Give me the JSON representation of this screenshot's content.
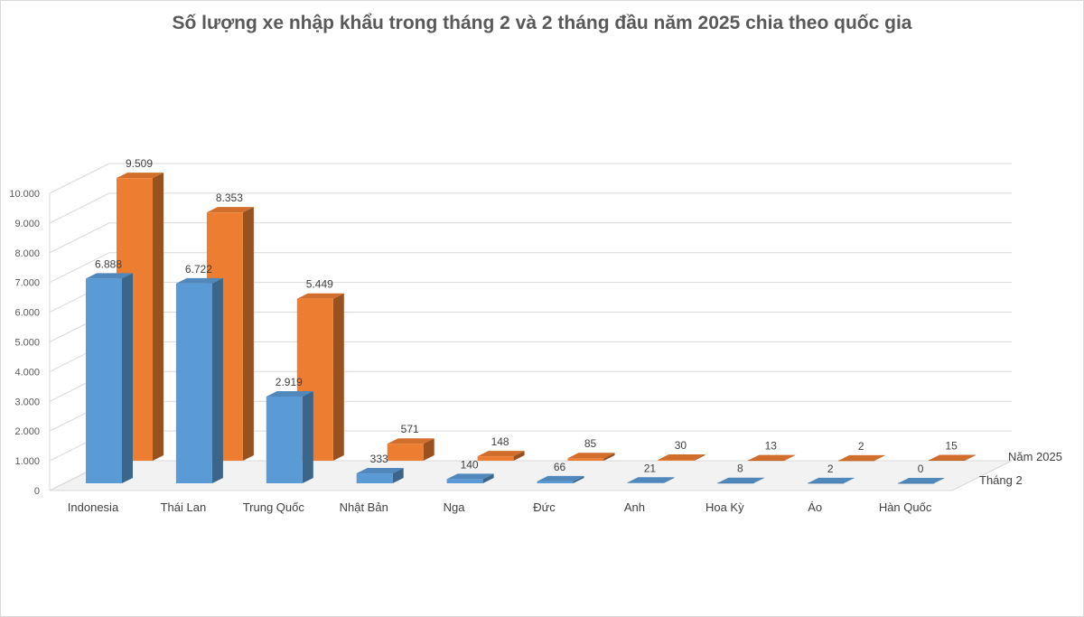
{
  "chart_data": {
    "type": "bar",
    "title": "Số lượng xe nhập khẩu trong tháng 2 và 2 tháng đầu năm 2025 chia theo quốc gia",
    "categories": [
      "Indonesia",
      "Thái Lan",
      "Trung Quốc",
      "Nhật Bản",
      "Nga",
      "Đức",
      "Anh",
      "Hoa Kỳ",
      "Áo",
      "Hàn Quốc"
    ],
    "series": [
      {
        "name": "Tháng 2",
        "color": "#5b9bd5",
        "values": [
          6888,
          6722,
          2919,
          333,
          140,
          66,
          21,
          8,
          2,
          0
        ],
        "labels": [
          "6.888",
          "6.722",
          "2.919",
          "333",
          "140",
          "66",
          "21",
          "8",
          "2",
          "0"
        ]
      },
      {
        "name": "Năm 2025",
        "color": "#ed7d31",
        "values": [
          9509,
          8353,
          5449,
          571,
          148,
          85,
          30,
          13,
          2,
          15
        ],
        "labels": [
          "9.509",
          "8.353",
          "5.449",
          "571",
          "148",
          "85",
          "30",
          "13",
          "2",
          "15"
        ]
      }
    ],
    "y_ticks": [
      "0",
      "1.000",
      "2.000",
      "3.000",
      "4.000",
      "5.000",
      "6.000",
      "7.000",
      "8.000",
      "9.000",
      "10.000"
    ],
    "ylim": [
      0,
      10000
    ],
    "grid": true,
    "view": "3d"
  }
}
